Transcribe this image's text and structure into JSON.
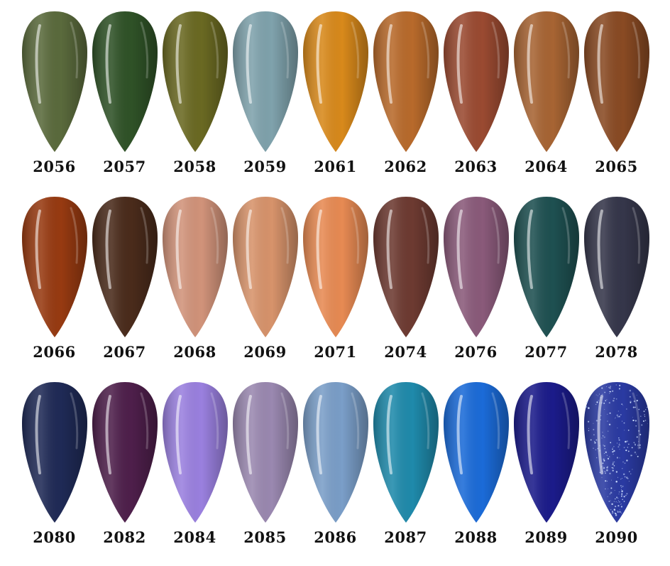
{
  "swatches": [
    {
      "code": "2056",
      "color": "#5a6a3c"
    },
    {
      "code": "2057",
      "color": "#2f5227"
    },
    {
      "code": "2058",
      "color": "#6a6922"
    },
    {
      "code": "2059",
      "color": "#7fa2ac"
    },
    {
      "code": "2061",
      "color": "#d8891b"
    },
    {
      "code": "2062",
      "color": "#b86a2b"
    },
    {
      "code": "2063",
      "color": "#9a4a31"
    },
    {
      "code": "2064",
      "color": "#a76433"
    },
    {
      "code": "2065",
      "color": "#894a23"
    },
    {
      "code": "2066",
      "color": "#973a11"
    },
    {
      "code": "2067",
      "color": "#4a2b1b"
    },
    {
      "code": "2068",
      "color": "#d1937a"
    },
    {
      "code": "2069",
      "color": "#d7936b"
    },
    {
      "code": "2071",
      "color": "#e78a53"
    },
    {
      "code": "2074",
      "color": "#6d3a31"
    },
    {
      "code": "2076",
      "color": "#8a5a7a"
    },
    {
      "code": "2077",
      "color": "#1e5051"
    },
    {
      "code": "2078",
      "color": "#35364a"
    },
    {
      "code": "2080",
      "color": "#1f2a56"
    },
    {
      "code": "2082",
      "color": "#4e1f4b"
    },
    {
      "code": "2084",
      "color": "#9a80df"
    },
    {
      "code": "2085",
      "color": "#9a88b0"
    },
    {
      "code": "2086",
      "color": "#7a9ec8"
    },
    {
      "code": "2087",
      "color": "#1f8aab"
    },
    {
      "code": "2088",
      "color": "#1b6bd8"
    },
    {
      "code": "2089",
      "color": "#1b1b8a"
    },
    {
      "code": "2090",
      "color": "#2a3aa2",
      "glitter": true
    }
  ]
}
